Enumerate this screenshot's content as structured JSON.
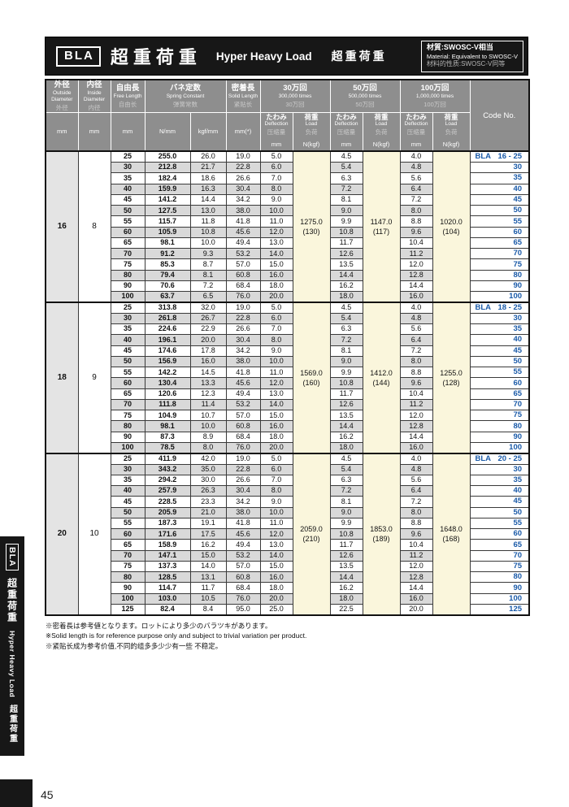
{
  "page_number": "45",
  "title_bar": {
    "code": "BLA",
    "title_jp": "超重荷重",
    "title_en": "Hyper Heavy Load",
    "title_cn": "超重荷重",
    "material_jp": "材質:SWOSC-V相当",
    "material_en": "Material: Equivalent to SWOSC-V",
    "material_cn": "材料的性质:SWOSC-V同等"
  },
  "side_tab": {
    "code": "BLA",
    "jp": "超重荷重",
    "en": "Hyper Heavy Load",
    "cn": "超重荷重"
  },
  "colors": {
    "accent_blue": "#1a5aa8",
    "header_gray": "#8e8e8e",
    "row_alt_gray": "#d9d9d9",
    "load_column_cream": "#faf6dc",
    "od_column_gray": "#e4e4e4",
    "bar_black": "#171717"
  },
  "table": {
    "col_headers": {
      "outside": {
        "jp": "外径",
        "en": "Outside Diameter",
        "cn": "外径",
        "unit": "mm"
      },
      "inside": {
        "jp": "内径",
        "en": "Inside Diameter",
        "cn": "内径",
        "unit": "mm"
      },
      "free_length": {
        "jp": "自由長",
        "en": "Free Length",
        "cn": "自由长",
        "unit": "mm"
      },
      "spring_constant": {
        "jp": "バネ定数",
        "en": "Spring Constant",
        "cn": "弹簧常数",
        "unit_n": "N/mm",
        "unit_kgf": "kgf/mm"
      },
      "solid_length": {
        "jp": "密着長",
        "en": "Solid Length",
        "cn": "紧贴长",
        "unit": "mm(*)"
      },
      "cycles": [
        {
          "jp": "30万回",
          "en": "300,000 times",
          "cn": "30万回"
        },
        {
          "jp": "50万回",
          "en": "500,000 times",
          "cn": "50万回"
        },
        {
          "jp": "100万回",
          "en": "1,000,000 times",
          "cn": "100万回"
        }
      ],
      "deflection": {
        "jp": "たわみ",
        "en": "Deflection",
        "cn": "压缩量",
        "unit": "mm"
      },
      "load": {
        "jp": "荷重",
        "en": "Load",
        "cn": "负荷",
        "unit": "N(kgf)"
      },
      "code_no": "Code No."
    },
    "blocks": [
      {
        "od": "16",
        "id": "8",
        "code_prefix": "BLA",
        "loads": [
          [
            "1275.0",
            "(130)"
          ],
          [
            "1147.0",
            "(117)"
          ],
          [
            "1020.0",
            "(104)"
          ]
        ],
        "rows": [
          [
            "25",
            "255.0",
            "26.0",
            "19.0",
            "5.0",
            "4.5",
            "4.0",
            "16 - 25"
          ],
          [
            "30",
            "212.8",
            "21.7",
            "22.8",
            "6.0",
            "5.4",
            "4.8",
            "30"
          ],
          [
            "35",
            "182.4",
            "18.6",
            "26.6",
            "7.0",
            "6.3",
            "5.6",
            "35"
          ],
          [
            "40",
            "159.9",
            "16.3",
            "30.4",
            "8.0",
            "7.2",
            "6.4",
            "40"
          ],
          [
            "45",
            "141.2",
            "14.4",
            "34.2",
            "9.0",
            "8.1",
            "7.2",
            "45"
          ],
          [
            "50",
            "127.5",
            "13.0",
            "38.0",
            "10.0",
            "9.0",
            "8.0",
            "50"
          ],
          [
            "55",
            "115.7",
            "11.8",
            "41.8",
            "11.0",
            "9.9",
            "8.8",
            "55"
          ],
          [
            "60",
            "105.9",
            "10.8",
            "45.6",
            "12.0",
            "10.8",
            "9.6",
            "60"
          ],
          [
            "65",
            "98.1",
            "10.0",
            "49.4",
            "13.0",
            "11.7",
            "10.4",
            "65"
          ],
          [
            "70",
            "91.2",
            "9.3",
            "53.2",
            "14.0",
            "12.6",
            "11.2",
            "70"
          ],
          [
            "75",
            "85.3",
            "8.7",
            "57.0",
            "15.0",
            "13.5",
            "12.0",
            "75"
          ],
          [
            "80",
            "79.4",
            "8.1",
            "60.8",
            "16.0",
            "14.4",
            "12.8",
            "80"
          ],
          [
            "90",
            "70.6",
            "7.2",
            "68.4",
            "18.0",
            "16.2",
            "14.4",
            "90"
          ],
          [
            "100",
            "63.7",
            "6.5",
            "76.0",
            "20.0",
            "18.0",
            "16.0",
            "100"
          ]
        ]
      },
      {
        "od": "18",
        "id": "9",
        "code_prefix": "BLA",
        "loads": [
          [
            "1569.0",
            "(160)"
          ],
          [
            "1412.0",
            "(144)"
          ],
          [
            "1255.0",
            "(128)"
          ]
        ],
        "rows": [
          [
            "25",
            "313.8",
            "32.0",
            "19.0",
            "5.0",
            "4.5",
            "4.0",
            "18 - 25"
          ],
          [
            "30",
            "261.8",
            "26.7",
            "22.8",
            "6.0",
            "5.4",
            "4.8",
            "30"
          ],
          [
            "35",
            "224.6",
            "22.9",
            "26.6",
            "7.0",
            "6.3",
            "5.6",
            "35"
          ],
          [
            "40",
            "196.1",
            "20.0",
            "30.4",
            "8.0",
            "7.2",
            "6.4",
            "40"
          ],
          [
            "45",
            "174.6",
            "17.8",
            "34.2",
            "9.0",
            "8.1",
            "7.2",
            "45"
          ],
          [
            "50",
            "156.9",
            "16.0",
            "38.0",
            "10.0",
            "9.0",
            "8.0",
            "50"
          ],
          [
            "55",
            "142.2",
            "14.5",
            "41.8",
            "11.0",
            "9.9",
            "8.8",
            "55"
          ],
          [
            "60",
            "130.4",
            "13.3",
            "45.6",
            "12.0",
            "10.8",
            "9.6",
            "60"
          ],
          [
            "65",
            "120.6",
            "12.3",
            "49.4",
            "13.0",
            "11.7",
            "10.4",
            "65"
          ],
          [
            "70",
            "111.8",
            "11.4",
            "53.2",
            "14.0",
            "12.6",
            "11.2",
            "70"
          ],
          [
            "75",
            "104.9",
            "10.7",
            "57.0",
            "15.0",
            "13.5",
            "12.0",
            "75"
          ],
          [
            "80",
            "98.1",
            "10.0",
            "60.8",
            "16.0",
            "14.4",
            "12.8",
            "80"
          ],
          [
            "90",
            "87.3",
            "8.9",
            "68.4",
            "18.0",
            "16.2",
            "14.4",
            "90"
          ],
          [
            "100",
            "78.5",
            "8.0",
            "76.0",
            "20.0",
            "18.0",
            "16.0",
            "100"
          ]
        ]
      },
      {
        "od": "20",
        "id": "10",
        "code_prefix": "BLA",
        "loads": [
          [
            "2059.0",
            "(210)"
          ],
          [
            "1853.0",
            "(189)"
          ],
          [
            "1648.0",
            "(168)"
          ]
        ],
        "rows": [
          [
            "25",
            "411.9",
            "42.0",
            "19.0",
            "5.0",
            "4.5",
            "4.0",
            "20 - 25"
          ],
          [
            "30",
            "343.2",
            "35.0",
            "22.8",
            "6.0",
            "5.4",
            "4.8",
            "30"
          ],
          [
            "35",
            "294.2",
            "30.0",
            "26.6",
            "7.0",
            "6.3",
            "5.6",
            "35"
          ],
          [
            "40",
            "257.9",
            "26.3",
            "30.4",
            "8.0",
            "7.2",
            "6.4",
            "40"
          ],
          [
            "45",
            "228.5",
            "23.3",
            "34.2",
            "9.0",
            "8.1",
            "7.2",
            "45"
          ],
          [
            "50",
            "205.9",
            "21.0",
            "38.0",
            "10.0",
            "9.0",
            "8.0",
            "50"
          ],
          [
            "55",
            "187.3",
            "19.1",
            "41.8",
            "11.0",
            "9.9",
            "8.8",
            "55"
          ],
          [
            "60",
            "171.6",
            "17.5",
            "45.6",
            "12.0",
            "10.8",
            "9.6",
            "60"
          ],
          [
            "65",
            "158.9",
            "16.2",
            "49.4",
            "13.0",
            "11.7",
            "10.4",
            "65"
          ],
          [
            "70",
            "147.1",
            "15.0",
            "53.2",
            "14.0",
            "12.6",
            "11.2",
            "70"
          ],
          [
            "75",
            "137.3",
            "14.0",
            "57.0",
            "15.0",
            "13.5",
            "12.0",
            "75"
          ],
          [
            "80",
            "128.5",
            "13.1",
            "60.8",
            "16.0",
            "14.4",
            "12.8",
            "80"
          ],
          [
            "90",
            "114.7",
            "11.7",
            "68.4",
            "18.0",
            "16.2",
            "14.4",
            "90"
          ],
          [
            "100",
            "103.0",
            "10.5",
            "76.0",
            "20.0",
            "18.0",
            "16.0",
            "100"
          ],
          [
            "125",
            "82.4",
            "8.4",
            "95.0",
            "25.0",
            "22.5",
            "20.0",
            "125"
          ]
        ]
      }
    ]
  },
  "footnotes": [
    "※密着長は参考値となります。ロットにより多少のバラツキがあります。",
    "※Solid length is for reference purpose only and subject to trivial variation per product.",
    "※紧贴长成为参考价值,不同的组多多少少有一些 不稳定。"
  ]
}
